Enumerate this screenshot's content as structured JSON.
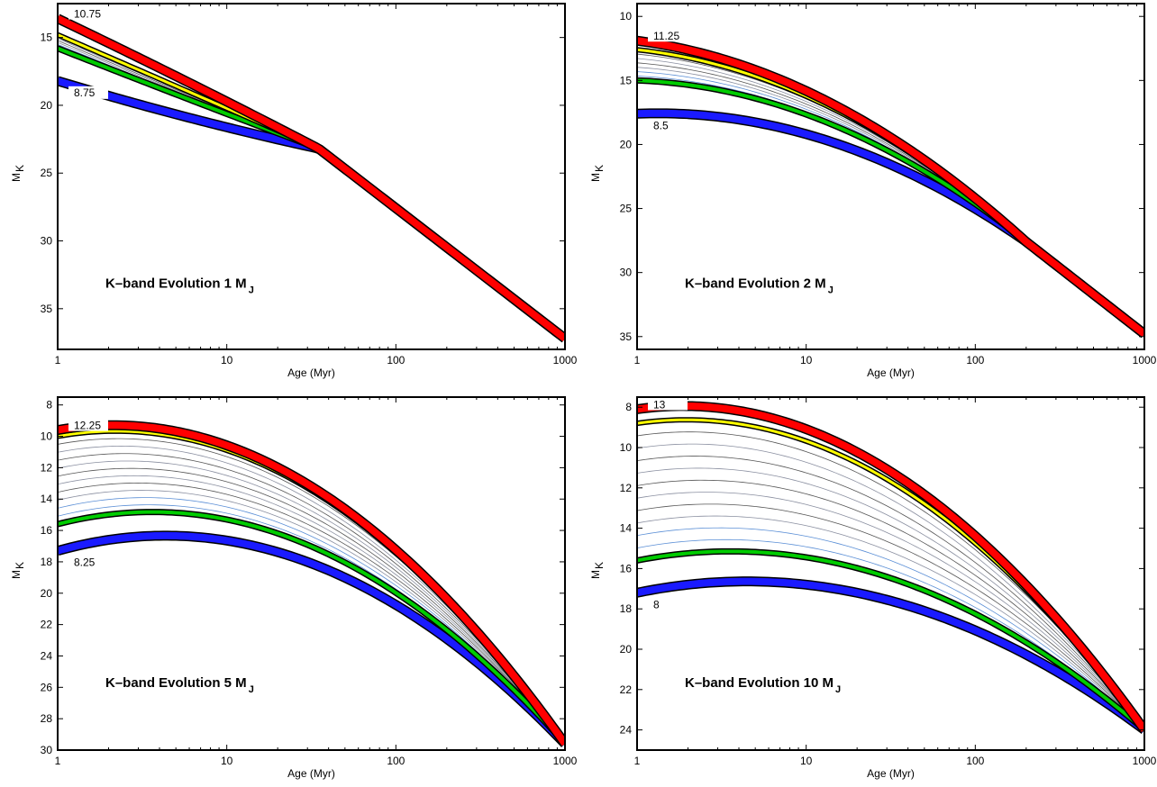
{
  "chart_data": [
    {
      "type": "line",
      "title": "K–band Evolution 1 M",
      "title_sub": "J",
      "xlabel": "Age (Myr)",
      "ylabel": "M",
      "ylabel_sub": "K",
      "xscale": "log",
      "xlim": [
        1,
        1000
      ],
      "ylim": [
        38,
        12.5
      ],
      "xticks": [
        "1",
        "10",
        "100",
        "1000"
      ],
      "yticks": [
        15,
        20,
        25,
        30,
        35
      ],
      "label_top": "10.75",
      "label_bottom": "8.75",
      "label_top_y": 13.6,
      "label_bottom_y": 18.2,
      "conv_age": 35,
      "conv_mk": 23.2,
      "end_mk": 37.2,
      "hi_start": 13.6,
      "hi_mid": 18.3,
      "lo_start": 18.2,
      "lo_mid": 20.9,
      "yellow_start": 14.8,
      "green_start": 15.8,
      "n_thin": 6,
      "colors": {
        "red": "#ff0000",
        "yellow": "#ffff00",
        "green": "#00cc00",
        "blue": "#1a1aff"
      }
    },
    {
      "type": "line",
      "title": "K–band Evolution 2 M",
      "title_sub": "J",
      "xlabel": "Age (Myr)",
      "ylabel": "M",
      "ylabel_sub": "K",
      "xscale": "log",
      "xlim": [
        1,
        1000
      ],
      "ylim": [
        36,
        9
      ],
      "xticks": [
        "1",
        "10",
        "100",
        "1000"
      ],
      "yticks": [
        10,
        15,
        20,
        25,
        30,
        35
      ],
      "label_top": "11.25",
      "label_bottom": "8.5",
      "label_top_y": 11.9,
      "label_bottom_y": 17.6,
      "conv_age": 200,
      "conv_mk": 27.6,
      "end_mk": 34.8,
      "hi_start": 11.9,
      "hi_mid": 16.8,
      "lo_start": 17.6,
      "lo_mid": 19.8,
      "yellow_start": 12.6,
      "green_start": 15.0,
      "n_thin": 6,
      "colors": {
        "red": "#ff0000",
        "yellow": "#ffff00",
        "green": "#00cc00",
        "blue": "#1a1aff"
      }
    },
    {
      "type": "line",
      "title": "K–band Evolution 5 M",
      "title_sub": "J",
      "xlabel": "Age (Myr)",
      "ylabel": "M",
      "ylabel_sub": "K",
      "xscale": "log",
      "xlim": [
        1,
        1000
      ],
      "ylim": [
        30,
        7.5
      ],
      "xticks": [
        "1",
        "10",
        "100",
        "1000"
      ],
      "yticks": [
        8,
        10,
        12,
        14,
        16,
        18,
        20,
        22,
        24,
        26,
        28,
        30
      ],
      "label_top": "12.25",
      "label_bottom": "8.25",
      "label_top_y": 9.6,
      "label_bottom_y": 17.3,
      "conv_age": 1000,
      "conv_mk": 29.6,
      "end_mk": 29.6,
      "hi_start": 9.6,
      "hi_mid": 13.2,
      "lo_start": 17.3,
      "lo_mid": 18.1,
      "yellow_start": 10.0,
      "green_start": 15.6,
      "n_thin": 10,
      "colors": {
        "red": "#ff0000",
        "yellow": "#ffff00",
        "green": "#00cc00",
        "blue": "#1a1aff"
      }
    },
    {
      "type": "line",
      "title": "K–band Evolution 10 M",
      "title_sub": "J",
      "xlabel": "Age (Myr)",
      "ylabel": "M",
      "ylabel_sub": "K",
      "xscale": "log",
      "xlim": [
        1,
        1000
      ],
      "ylim": [
        25,
        7.5
      ],
      "xticks": [
        "1",
        "10",
        "100",
        "1000"
      ],
      "yticks": [
        8,
        10,
        12,
        14,
        16,
        18,
        20,
        22,
        24
      ],
      "label_top": "13",
      "label_bottom": "8",
      "label_top_y": 8.1,
      "label_bottom_y": 17.2,
      "conv_age": 1000,
      "conv_mk": 24.0,
      "end_mk": 24.0,
      "hi_start": 8.1,
      "hi_mid": 11.2,
      "lo_start": 17.2,
      "lo_mid": 17.6,
      "yellow_start": 8.8,
      "green_start": 15.6,
      "n_thin": 10,
      "colors": {
        "red": "#ff0000",
        "yellow": "#ffff00",
        "green": "#00cc00",
        "blue": "#1a1aff"
      }
    }
  ]
}
